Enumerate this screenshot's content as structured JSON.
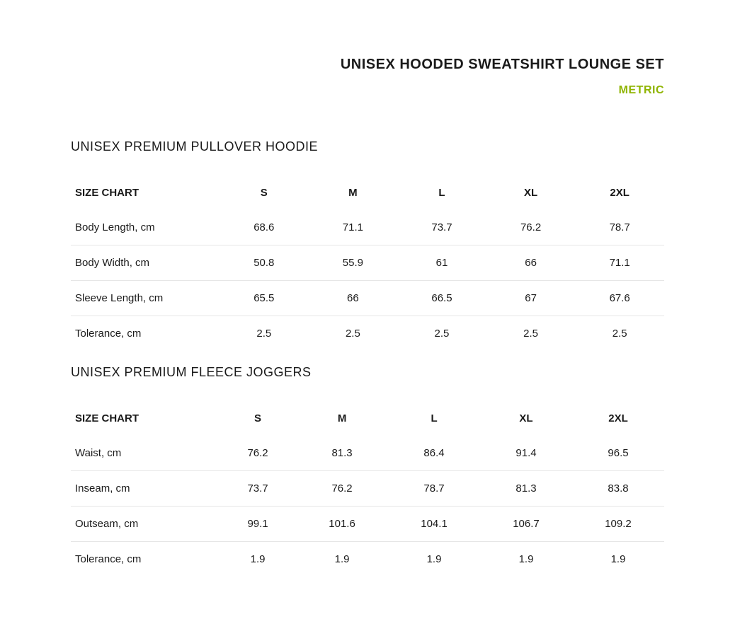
{
  "header": {
    "title": "UNISEX HOODED SWEATSHIRT LOUNGE SET",
    "unit_label": "METRIC",
    "unit_color": "#8fb400"
  },
  "sections": [
    {
      "title": "UNISEX PREMIUM PULLOVER HOODIE",
      "header_label": "SIZE CHART",
      "columns": [
        "S",
        "M",
        "L",
        "XL",
        "2XL"
      ],
      "rows": [
        {
          "label": "Body Length, cm",
          "values": [
            "68.6",
            "71.1",
            "73.7",
            "76.2",
            "78.7"
          ]
        },
        {
          "label": "Body Width, cm",
          "values": [
            "50.8",
            "55.9",
            "61",
            "66",
            "71.1"
          ]
        },
        {
          "label": "Sleeve Length, cm",
          "values": [
            "65.5",
            "66",
            "66.5",
            "67",
            "67.6"
          ]
        },
        {
          "label": "Tolerance, cm",
          "values": [
            "2.5",
            "2.5",
            "2.5",
            "2.5",
            "2.5"
          ]
        }
      ]
    },
    {
      "title": "UNISEX PREMIUM FLEECE JOGGERS",
      "header_label": "SIZE CHART",
      "columns": [
        "S",
        "M",
        "L",
        "XL",
        "2XL"
      ],
      "rows": [
        {
          "label": "Waist, cm",
          "values": [
            "76.2",
            "81.3",
            "86.4",
            "91.4",
            "96.5"
          ]
        },
        {
          "label": "Inseam, cm",
          "values": [
            "73.7",
            "76.2",
            "78.7",
            "81.3",
            "83.8"
          ]
        },
        {
          "label": "Outseam, cm",
          "values": [
            "99.1",
            "101.6",
            "104.1",
            "106.7",
            "109.2"
          ]
        },
        {
          "label": "Tolerance, cm",
          "values": [
            "1.9",
            "1.9",
            "1.9",
            "1.9",
            "1.9"
          ]
        }
      ]
    }
  ],
  "style": {
    "background_color": "#ffffff",
    "text_color": "#1a1a1a",
    "border_color": "#e6e6e6",
    "title_fontsize": 20,
    "section_title_fontsize": 18,
    "body_fontsize": 15
  }
}
